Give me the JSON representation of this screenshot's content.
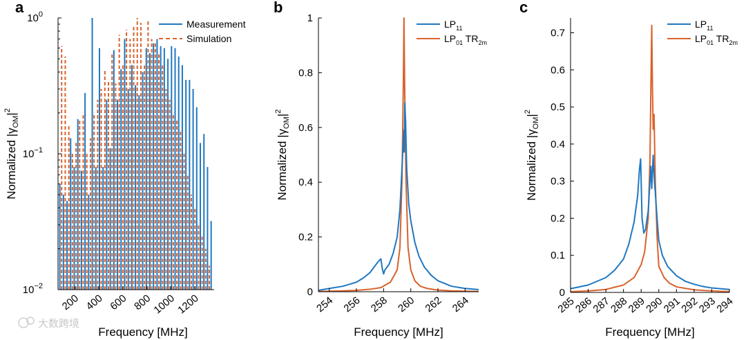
{
  "watermark": "大数跨境",
  "colors": {
    "measurement": "#1f77c0",
    "simulation": "#d9622b",
    "axis": "#000000"
  },
  "chart_data": [
    {
      "panel": "a",
      "type": "bar",
      "yscale": "log",
      "xlabel": "Frequency [MHz]",
      "ylabel": "Normalized |γOM|²",
      "ylabel_parts": {
        "main": "Normalized |γ",
        "sub": "OM",
        "sup": "2"
      },
      "xlim": [
        60,
        1360
      ],
      "ylim": [
        0.01,
        1
      ],
      "xticks": [
        200,
        400,
        600,
        800,
        1000,
        1200
      ],
      "xtick_labels": [
        "200",
        "400",
        "600",
        "800",
        "1000",
        "1200"
      ],
      "yticks": [
        0.01,
        0.1,
        1
      ],
      "ytick_labels": [
        {
          "base": "10",
          "exp": "−2"
        },
        {
          "base": "10",
          "exp": "−1"
        },
        {
          "base": "10",
          "exp": "0"
        }
      ],
      "legend_position": "top-right",
      "series": [
        {
          "name": "Measurement",
          "style": "solid",
          "x": [
            75,
            105,
            135,
            165,
            195,
            225,
            255,
            285,
            315,
            345,
            375,
            405,
            435,
            465,
            495,
            525,
            555,
            585,
            615,
            645,
            675,
            705,
            735,
            765,
            795,
            825,
            855,
            885,
            915,
            945,
            975,
            1005,
            1035,
            1065,
            1095,
            1125,
            1155,
            1185,
            1215,
            1245,
            1275,
            1305,
            1335
          ],
          "values": [
            0.06,
            0.05,
            0.045,
            0.13,
            0.08,
            0.18,
            0.075,
            0.28,
            0.05,
            1.0,
            0.08,
            0.6,
            0.08,
            0.25,
            0.11,
            0.58,
            0.25,
            0.42,
            0.7,
            0.3,
            0.45,
            0.32,
            0.27,
            0.4,
            0.6,
            0.55,
            0.65,
            0.7,
            0.62,
            0.6,
            0.5,
            0.62,
            0.6,
            0.52,
            0.45,
            0.35,
            0.35,
            0.3,
            0.22,
            0.12,
            0.14,
            0.08,
            0.032
          ]
        },
        {
          "name": "Simulation",
          "style": "dashed",
          "x": [
            90,
            120,
            150,
            180,
            210,
            240,
            270,
            300,
            330,
            360,
            390,
            420,
            450,
            480,
            510,
            540,
            570,
            600,
            630,
            660,
            690,
            720,
            750,
            780,
            810,
            840,
            870,
            900,
            930,
            960,
            990,
            1020,
            1050,
            1080,
            1110,
            1140,
            1170,
            1200,
            1230,
            1260,
            1290,
            1320
          ],
          "values": [
            0.62,
            0.52,
            0.16,
            0.1,
            0.12,
            0.18,
            0.2,
            0.1,
            0.13,
            0.2,
            0.25,
            0.3,
            0.42,
            0.35,
            0.55,
            0.33,
            0.75,
            0.45,
            0.82,
            0.7,
            0.87,
            1.0,
            0.92,
            0.45,
            0.97,
            0.7,
            0.65,
            0.55,
            0.45,
            0.3,
            0.25,
            0.2,
            0.18,
            0.15,
            0.1,
            0.07,
            0.05,
            0.04,
            0.03,
            0.025,
            0.02,
            0.015
          ]
        }
      ]
    },
    {
      "panel": "b",
      "type": "line",
      "xlabel": "Frequency [MHz]",
      "ylabel": "Normalized |γOM|²",
      "ylabel_parts": {
        "main": "Normalized |γ",
        "sub": "OM",
        "sup": "2"
      },
      "xlim": [
        253.2,
        265
      ],
      "ylim": [
        0,
        1
      ],
      "xticks": [
        254,
        256,
        258,
        260,
        262,
        264
      ],
      "xtick_labels": [
        "254",
        "256",
        "258",
        "260",
        "262",
        "264"
      ],
      "yticks": [
        0,
        0.2,
        0.4,
        0.6,
        0.8,
        1
      ],
      "ytick_labels": [
        "0",
        "0.2",
        "0.4",
        "0.6",
        "0.8",
        "1"
      ],
      "legend_position": "top-right",
      "series": [
        {
          "name": "LP11",
          "name_parts": {
            "main": "LP",
            "sub": "11"
          },
          "x": [
            253.2,
            254,
            255,
            256,
            256.5,
            257,
            257.3,
            257.6,
            257.8,
            257.9,
            258,
            258.1,
            258.4,
            258.7,
            259,
            259.2,
            259.35,
            259.45,
            259.5,
            259.52,
            259.56,
            259.62,
            259.7,
            259.85,
            260,
            260.3,
            260.6,
            261,
            261.5,
            262,
            262.5,
            263,
            264,
            265
          ],
          "values": [
            0.005,
            0.012,
            0.02,
            0.035,
            0.05,
            0.07,
            0.09,
            0.11,
            0.12,
            0.085,
            0.065,
            0.08,
            0.1,
            0.14,
            0.2,
            0.3,
            0.45,
            0.55,
            0.59,
            0.51,
            0.69,
            0.62,
            0.45,
            0.32,
            0.26,
            0.18,
            0.13,
            0.09,
            0.06,
            0.04,
            0.03,
            0.02,
            0.012,
            0.008
          ]
        },
        {
          "name": "LP01 TR2m",
          "name_parts": {
            "main": "LP",
            "sub": "01",
            "mid": " TR",
            "sub2": "2m"
          },
          "x": [
            253.2,
            255,
            256,
            257,
            257.8,
            258.5,
            259,
            259.2,
            259.35,
            259.45,
            259.5,
            259.55,
            259.65,
            259.8,
            260,
            260.3,
            260.7,
            261.2,
            262,
            263,
            264,
            265
          ],
          "values": [
            0.001,
            0.003,
            0.005,
            0.009,
            0.015,
            0.035,
            0.08,
            0.16,
            0.4,
            0.75,
            1.0,
            0.75,
            0.4,
            0.16,
            0.08,
            0.04,
            0.02,
            0.012,
            0.006,
            0.003,
            0.002,
            0.001
          ]
        }
      ]
    },
    {
      "panel": "c",
      "type": "line",
      "xlabel": "Frequency [MHz]",
      "ylabel": "Normalized |γOM|²",
      "ylabel_parts": {
        "main": "Normalized |γ",
        "sub": "OM",
        "sup": "2"
      },
      "xlim": [
        285,
        294
      ],
      "ylim": [
        0,
        0.74
      ],
      "xticks": [
        285,
        286,
        287,
        288,
        289,
        290,
        291,
        292,
        293,
        294
      ],
      "xtick_labels": [
        "285",
        "286",
        "287",
        "288",
        "289",
        "290",
        "291",
        "292",
        "293",
        "294"
      ],
      "yticks": [
        0,
        0.1,
        0.2,
        0.3,
        0.4,
        0.5,
        0.6,
        0.7
      ],
      "ytick_labels": [
        "0",
        "0.1",
        "0.2",
        "0.3",
        "0.4",
        "0.5",
        "0.6",
        "0.7"
      ],
      "legend_position": "top-right",
      "series": [
        {
          "name": "LP11",
          "name_parts": {
            "main": "LP",
            "sub": "11"
          },
          "x": [
            285,
            286,
            287,
            287.5,
            288,
            288.3,
            288.6,
            288.8,
            288.9,
            288.97,
            289.05,
            289.15,
            289.25,
            289.4,
            289.55,
            289.6,
            289.68,
            289.75,
            289.8,
            289.9,
            290,
            290.2,
            290.5,
            291,
            291.5,
            292,
            292.5,
            293,
            294
          ],
          "values": [
            0.01,
            0.02,
            0.04,
            0.06,
            0.09,
            0.13,
            0.19,
            0.26,
            0.33,
            0.36,
            0.2,
            0.16,
            0.17,
            0.22,
            0.34,
            0.28,
            0.37,
            0.3,
            0.27,
            0.2,
            0.14,
            0.1,
            0.07,
            0.045,
            0.03,
            0.022,
            0.016,
            0.012,
            0.008
          ]
        },
        {
          "name": "LP01 TR2m",
          "name_parts": {
            "main": "LP",
            "sub": "01",
            "mid": " TR",
            "sub2": "2m"
          },
          "x": [
            285,
            286,
            287,
            288,
            288.6,
            289,
            289.2,
            289.4,
            289.5,
            289.55,
            289.6,
            289.64,
            289.68,
            289.73,
            289.8,
            289.9,
            290,
            290.1,
            290.3,
            290.6,
            291,
            292,
            293,
            294
          ],
          "values": [
            0.002,
            0.004,
            0.008,
            0.02,
            0.04,
            0.075,
            0.11,
            0.2,
            0.36,
            0.55,
            0.72,
            0.55,
            0.44,
            0.48,
            0.3,
            0.15,
            0.07,
            0.06,
            0.04,
            0.025,
            0.015,
            0.007,
            0.004,
            0.002
          ]
        }
      ]
    }
  ]
}
